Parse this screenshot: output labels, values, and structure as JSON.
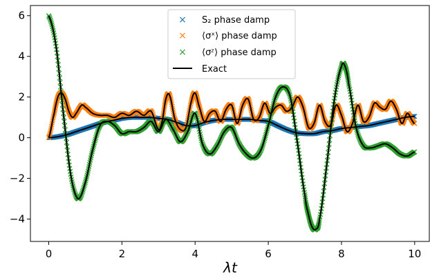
{
  "chart_data": {
    "type": "line",
    "title": "",
    "xlabel": "λt",
    "ylabel": "",
    "xlim": [
      -0.5,
      10.4
    ],
    "ylim": [
      -5.1,
      6.5
    ],
    "xticks": [
      0,
      2,
      4,
      6,
      8,
      10
    ],
    "yticks": [
      -4,
      -2,
      0,
      2,
      4,
      6
    ],
    "xtick_labels": [
      "0",
      "2",
      "4",
      "6",
      "8",
      "10"
    ],
    "ytick_labels": [
      "−4",
      "−2",
      "0",
      "2",
      "4",
      "6"
    ],
    "grid": false,
    "legend_position": "top-center",
    "series": [
      {
        "name": "S₂ phase damp",
        "marker": "x",
        "color": "#1f77b4",
        "x": [
          0,
          0.25,
          0.5,
          0.75,
          1,
          1.25,
          1.5,
          1.75,
          2,
          2.25,
          2.5,
          2.75,
          3,
          3.25,
          3.5,
          3.75,
          4,
          4.25,
          4.5,
          4.75,
          5,
          5.25,
          5.5,
          5.75,
          6,
          6.25,
          6.5,
          6.75,
          7,
          7.25,
          7.5,
          7.75,
          8,
          8.25,
          8.5,
          8.75,
          9,
          9.25,
          9.5,
          9.75,
          10
        ],
        "y": [
          0,
          0.05,
          0.15,
          0.3,
          0.45,
          0.6,
          0.75,
          0.85,
          0.95,
          1.0,
          1.0,
          1.0,
          0.95,
          0.9,
          0.75,
          0.6,
          0.6,
          0.75,
          0.85,
          0.9,
          0.9,
          0.9,
          0.9,
          0.85,
          0.8,
          0.6,
          0.4,
          0.25,
          0.2,
          0.2,
          0.3,
          0.35,
          0.45,
          0.5,
          0.55,
          0.6,
          0.7,
          0.8,
          0.9,
          1.0,
          1.05
        ]
      },
      {
        "name": "⟨σˣ⟩ phase damp",
        "marker": "x",
        "color": "#ff7f0e",
        "x": [
          0,
          0.15,
          0.25,
          0.35,
          0.45,
          0.55,
          0.65,
          0.75,
          0.9,
          1.0,
          1.2,
          1.4,
          1.6,
          1.8,
          2.0,
          2.2,
          2.4,
          2.6,
          2.8,
          3.0,
          3.1,
          3.2,
          3.3,
          3.45,
          3.6,
          3.75,
          3.9,
          4.0,
          4.1,
          4.25,
          4.4,
          4.55,
          4.7,
          4.85,
          5.0,
          5.15,
          5.3,
          5.45,
          5.6,
          5.75,
          5.9,
          6.05,
          6.2,
          6.35,
          6.5,
          6.65,
          6.8,
          6.95,
          7.1,
          7.25,
          7.4,
          7.55,
          7.7,
          7.85,
          8.0,
          8.15,
          8.3,
          8.45,
          8.6,
          8.75,
          8.9,
          9.05,
          9.2,
          9.35,
          9.5,
          9.65,
          9.8,
          9.95,
          10.0
        ],
        "y": [
          0,
          1.2,
          2.0,
          2.2,
          1.9,
          1.3,
          1.0,
          1.2,
          1.6,
          1.5,
          1.2,
          1.1,
          1.1,
          1.0,
          1.2,
          1.1,
          1.3,
          1.1,
          1.3,
          0.4,
          0.8,
          1.9,
          2.1,
          0.9,
          0.4,
          0.5,
          1.8,
          2.2,
          1.6,
          0.8,
          1.2,
          1.3,
          0.8,
          1.4,
          1.6,
          0.7,
          1.6,
          1.9,
          0.9,
          1.0,
          1.7,
          1.2,
          1.5,
          1.6,
          1.3,
          1.5,
          2.0,
          1.5,
          0.5,
          0.7,
          1.6,
          0.8,
          0.6,
          1.6,
          1.1,
          0.3,
          0.7,
          1.6,
          0.8,
          1.0,
          1.7,
          1.5,
          1.4,
          1.8,
          1.4,
          0.7,
          1.2,
          0.8,
          0.7
        ]
      },
      {
        "name": "⟨σᶻ⟩ phase damp",
        "marker": "x",
        "color": "#2ca02c",
        "x": [
          0,
          0.2,
          0.4,
          0.6,
          0.8,
          1.0,
          1.2,
          1.4,
          1.6,
          1.8,
          2.0,
          2.2,
          2.4,
          2.6,
          2.8,
          3.0,
          3.2,
          3.4,
          3.6,
          3.8,
          4.0,
          4.2,
          4.4,
          4.6,
          4.8,
          5.0,
          5.2,
          5.4,
          5.6,
          5.8,
          6.0,
          6.2,
          6.4,
          6.6,
          6.8,
          7.0,
          7.1,
          7.2,
          7.3,
          7.4,
          7.6,
          7.8,
          8.0,
          8.1,
          8.2,
          8.4,
          8.6,
          8.8,
          9.0,
          9.2,
          9.4,
          9.6,
          9.8,
          10.0
        ],
        "y": [
          6,
          4.5,
          1.2,
          -1.8,
          -3.0,
          -2.2,
          -0.6,
          0.6,
          0.8,
          0.6,
          0.2,
          0.3,
          0.3,
          0.5,
          0.8,
          0.3,
          0.9,
          0.4,
          -0.2,
          0.3,
          1.2,
          -0.3,
          -0.8,
          -0.4,
          0.3,
          0.5,
          -0.3,
          -0.8,
          -1.0,
          -0.6,
          0.6,
          2.0,
          2.5,
          2.0,
          -0.3,
          -2.8,
          -3.8,
          -4.4,
          -4.5,
          -4.0,
          -1.3,
          1.8,
          3.5,
          3.5,
          2.6,
          0.5,
          -0.4,
          -0.5,
          -0.4,
          -0.3,
          -0.5,
          -0.8,
          -0.9,
          -0.7
        ]
      },
      {
        "name": "Exact",
        "marker": "line",
        "color": "#000000"
      }
    ]
  }
}
